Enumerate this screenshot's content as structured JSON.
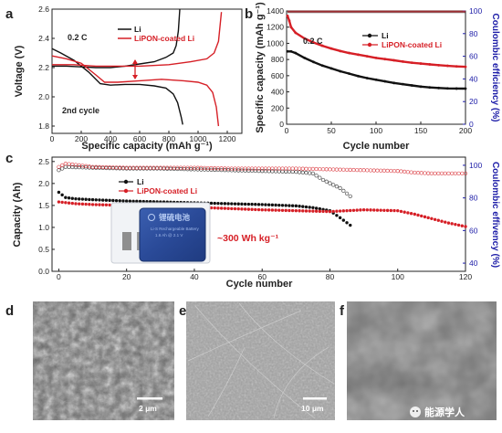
{
  "colors": {
    "li": "#111111",
    "lipon": "#d61f26",
    "blue_axis": "#1d1da8",
    "battery_label": "#7fa6e6"
  },
  "watermark": "能源学人",
  "chart_data": [
    {
      "panel": "a",
      "type": "line",
      "xlabel": "Specific capacity (mAh g⁻¹)",
      "ylabel": "Voltage (V)",
      "xlim": [
        0,
        1300
      ],
      "ylim": [
        1.75,
        2.6
      ],
      "xticks": [
        0,
        200,
        400,
        600,
        800,
        1000,
        1200
      ],
      "yticks": [
        1.8,
        2.0,
        2.2,
        2.4,
        2.6
      ],
      "annotations": {
        "rate": "0.2 C",
        "cycle": "2nd cycle"
      },
      "series": [
        {
          "name": "Li",
          "color": "#111111",
          "discharge": [
            [
              0,
              2.33
            ],
            [
              60,
              2.3
            ],
            [
              150,
              2.25
            ],
            [
              250,
              2.17
            ],
            [
              330,
              2.09
            ],
            [
              400,
              2.08
            ],
            [
              500,
              2.085
            ],
            [
              600,
              2.085
            ],
            [
              700,
              2.075
            ],
            [
              780,
              2.06
            ],
            [
              830,
              2.02
            ],
            [
              860,
              1.96
            ],
            [
              885,
              1.86
            ],
            [
              895,
              1.81
            ]
          ],
          "charge": [
            [
              0,
              2.21
            ],
            [
              100,
              2.21
            ],
            [
              200,
              2.205
            ],
            [
              300,
              2.2
            ],
            [
              400,
              2.2
            ],
            [
              500,
              2.21
            ],
            [
              600,
              2.225
            ],
            [
              700,
              2.24
            ],
            [
              780,
              2.27
            ],
            [
              830,
              2.3
            ],
            [
              850,
              2.35
            ],
            [
              865,
              2.45
            ],
            [
              875,
              2.6
            ]
          ]
        },
        {
          "name": "LiPON-coated Li",
          "color": "#d61f26",
          "discharge": [
            [
              0,
              2.28
            ],
            [
              100,
              2.26
            ],
            [
              200,
              2.23
            ],
            [
              300,
              2.15
            ],
            [
              360,
              2.1
            ],
            [
              450,
              2.1
            ],
            [
              600,
              2.11
            ],
            [
              750,
              2.12
            ],
            [
              900,
              2.11
            ],
            [
              1000,
              2.1
            ],
            [
              1060,
              2.08
            ],
            [
              1100,
              2.03
            ],
            [
              1125,
              1.93
            ],
            [
              1140,
              1.8
            ]
          ],
          "charge": [
            [
              0,
              2.22
            ],
            [
              150,
              2.22
            ],
            [
              300,
              2.21
            ],
            [
              450,
              2.21
            ],
            [
              600,
              2.21
            ],
            [
              800,
              2.22
            ],
            [
              950,
              2.24
            ],
            [
              1060,
              2.26
            ],
            [
              1110,
              2.3
            ],
            [
              1140,
              2.38
            ],
            [
              1160,
              2.58
            ]
          ]
        }
      ]
    },
    {
      "panel": "b",
      "type": "scatter",
      "xlabel": "Cycle number",
      "ylabel": "Specific capacity (mAh g⁻¹)",
      "y2label": "Coulombic efficiency (%)",
      "xlim": [
        0,
        200
      ],
      "ylim": [
        0,
        1400
      ],
      "y2lim": [
        0,
        100
      ],
      "xticks": [
        0,
        50,
        100,
        150,
        200
      ],
      "yticks": [
        0,
        200,
        400,
        600,
        800,
        1000,
        1200,
        1400
      ],
      "y2ticks": [
        0,
        20,
        40,
        60,
        80,
        100
      ],
      "annotations": {
        "rate": "0.2 C"
      },
      "series": [
        {
          "name": "Li",
          "color": "#111111",
          "capacity": [
            [
              1,
              900
            ],
            [
              5,
              900
            ],
            [
              10,
              880
            ],
            [
              20,
              820
            ],
            [
              30,
              770
            ],
            [
              40,
              725
            ],
            [
              50,
              690
            ],
            [
              60,
              655
            ],
            [
              70,
              625
            ],
            [
              80,
              595
            ],
            [
              90,
              570
            ],
            [
              100,
              550
            ],
            [
              110,
              530
            ],
            [
              120,
              510
            ],
            [
              130,
              495
            ],
            [
              140,
              480
            ],
            [
              150,
              465
            ],
            [
              160,
              455
            ],
            [
              170,
              448
            ],
            [
              180,
              443
            ],
            [
              190,
              441
            ],
            [
              200,
              440
            ]
          ],
          "ce": 99
        },
        {
          "name": "LiPON-coated Li",
          "color": "#d61f26",
          "capacity": [
            [
              1,
              1340
            ],
            [
              3,
              1280
            ],
            [
              5,
              1200
            ],
            [
              10,
              1130
            ],
            [
              20,
              1060
            ],
            [
              30,
              1010
            ],
            [
              40,
              970
            ],
            [
              50,
              935
            ],
            [
              60,
              905
            ],
            [
              70,
              880
            ],
            [
              80,
              860
            ],
            [
              90,
              840
            ],
            [
              100,
              820
            ],
            [
              110,
              805
            ],
            [
              120,
              790
            ],
            [
              130,
              775
            ],
            [
              140,
              760
            ],
            [
              150,
              750
            ],
            [
              160,
              740
            ],
            [
              170,
              730
            ],
            [
              180,
              722
            ],
            [
              190,
              715
            ],
            [
              200,
              710
            ]
          ],
          "ce": 99.5
        }
      ]
    },
    {
      "panel": "c",
      "type": "scatter",
      "xlabel": "Cycle number",
      "ylabel": "Capacity (Ah)",
      "y2label": "Coulombic effivency (%)",
      "xlim": [
        -2,
        120
      ],
      "ylim": [
        0,
        2.6
      ],
      "y2lim": [
        35,
        105
      ],
      "xticks": [
        0,
        20,
        40,
        60,
        80,
        100,
        120
      ],
      "yticks": [
        0.0,
        0.5,
        1.0,
        1.5,
        2.0,
        2.5
      ],
      "y2ticks": [
        40,
        60,
        80,
        100
      ],
      "annotations": {
        "energy": "~300 Wh kg⁻¹",
        "battery_brand": "锂硫电池",
        "battery_sub1": "Li-S Rechargeable Battery",
        "battery_sub2": "1.6 Ah @ 2.1 V"
      },
      "series": [
        {
          "name": "Li",
          "color": "#111111",
          "capacity": [
            [
              0,
              1.8
            ],
            [
              2,
              1.68
            ],
            [
              5,
              1.65
            ],
            [
              10,
              1.63
            ],
            [
              20,
              1.6
            ],
            [
              30,
              1.58
            ],
            [
              40,
              1.56
            ],
            [
              50,
              1.54
            ],
            [
              60,
              1.52
            ],
            [
              70,
              1.49
            ],
            [
              75,
              1.45
            ],
            [
              80,
              1.38
            ],
            [
              83,
              1.22
            ],
            [
              86,
              1.05
            ]
          ],
          "ce": [
            [
              0,
              97
            ],
            [
              2,
              99
            ],
            [
              10,
              98.5
            ],
            [
              20,
              98
            ],
            [
              30,
              98
            ],
            [
              40,
              97.5
            ],
            [
              50,
              97
            ],
            [
              60,
              96.5
            ],
            [
              70,
              96
            ],
            [
              75,
              95
            ],
            [
              78,
              91
            ],
            [
              80,
              89
            ],
            [
              83,
              86
            ],
            [
              86,
              81
            ]
          ]
        },
        {
          "name": "LiPON-coated Li",
          "color": "#d61f26",
          "capacity": [
            [
              0,
              1.58
            ],
            [
              5,
              1.54
            ],
            [
              10,
              1.52
            ],
            [
              20,
              1.5
            ],
            [
              30,
              1.48
            ],
            [
              40,
              1.46
            ],
            [
              50,
              1.43
            ],
            [
              60,
              1.4
            ],
            [
              70,
              1.38
            ],
            [
              80,
              1.36
            ],
            [
              90,
              1.4
            ],
            [
              100,
              1.38
            ],
            [
              105,
              1.3
            ],
            [
              110,
              1.2
            ],
            [
              115,
              1.1
            ],
            [
              120,
              1.02
            ]
          ],
          "ce": [
            [
              0,
              99
            ],
            [
              2,
              101
            ],
            [
              10,
              99
            ],
            [
              20,
              98.5
            ],
            [
              30,
              98.5
            ],
            [
              40,
              98.5
            ],
            [
              50,
              98
            ],
            [
              60,
              98
            ],
            [
              70,
              98
            ],
            [
              80,
              97.5
            ],
            [
              90,
              97
            ],
            [
              100,
              96.5
            ],
            [
              105,
              95.5
            ],
            [
              110,
              95
            ],
            [
              120,
              95
            ]
          ]
        }
      ]
    }
  ],
  "panels": {
    "a": {
      "label": "a",
      "rate": "0.2 C",
      "cycle": "2nd cycle"
    },
    "b": {
      "label": "b",
      "rate": "0.2 C"
    },
    "c": {
      "label": "c",
      "energy": "~300 Wh kg⁻¹",
      "battery_brand": "锂硫电池",
      "battery_sub1": "Li-S Rechargeable Battery",
      "battery_sub2": "1.6 Ah @ 2.1 V"
    },
    "d": {
      "label": "d",
      "scalebar": "2 μm"
    },
    "e": {
      "label": "e",
      "scalebar": "10 μm"
    },
    "f": {
      "label": "f"
    }
  },
  "legend": {
    "li": "Li",
    "lipon": "LiPON-coated Li"
  }
}
